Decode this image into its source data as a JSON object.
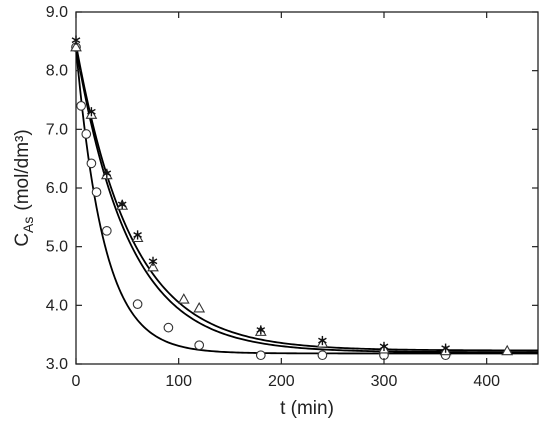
{
  "chart_data": {
    "type": "scatter",
    "title": "",
    "xlabel": "t (min)",
    "ylabel": {
      "main": "C",
      "sub": "As",
      "unit": "(mol/dm³)"
    },
    "xlim": [
      0,
      450
    ],
    "ylim": [
      3.0,
      9.0
    ],
    "x_ticks": [
      0,
      100,
      200,
      300,
      400
    ],
    "x_tick_labels": [
      "0",
      "100",
      "200",
      "300",
      "400"
    ],
    "y_ticks": [
      3,
      4,
      5,
      6,
      7,
      8,
      9
    ],
    "y_tick_labels": [
      "3.0",
      "4.0",
      "5.0",
      "6.0",
      "7.0",
      "8.0",
      "9.0"
    ],
    "grid": false,
    "legend": "none",
    "series": [
      {
        "marker": "circle",
        "x": [
          0,
          5,
          10,
          15,
          20,
          30,
          60,
          90,
          120,
          180,
          240,
          300,
          360
        ],
        "y": [
          8.4,
          7.4,
          6.92,
          6.42,
          5.93,
          5.27,
          4.02,
          3.62,
          3.32,
          3.15,
          3.15,
          3.15,
          3.15
        ]
      },
      {
        "marker": "triangle",
        "x": [
          0,
          15,
          30,
          45,
          60,
          75,
          105,
          120,
          180,
          240,
          300,
          360,
          420
        ],
        "y": [
          8.4,
          7.25,
          6.22,
          5.7,
          5.15,
          4.65,
          4.1,
          3.95,
          3.55,
          3.35,
          3.25,
          3.22,
          3.22
        ]
      },
      {
        "marker": "asterisk",
        "x": [
          0,
          15,
          30,
          45,
          60,
          75,
          180,
          240,
          300,
          360
        ],
        "y": [
          8.52,
          7.3,
          6.25,
          5.72,
          5.2,
          4.75,
          3.58,
          3.4,
          3.3,
          3.27
        ]
      }
    ],
    "fit_curves": [
      {
        "c0": 8.4,
        "cinf": 3.18,
        "k": 0.037
      },
      {
        "c0": 8.4,
        "cinf": 3.2,
        "k": 0.0195
      },
      {
        "c0": 8.45,
        "cinf": 3.23,
        "k": 0.0185
      }
    ]
  }
}
